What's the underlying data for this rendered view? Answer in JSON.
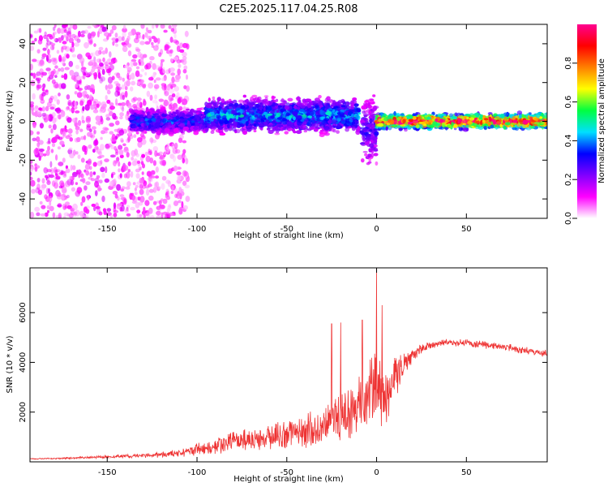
{
  "title": "C2E5.2025.117.04.25.R08",
  "chart_data": [
    {
      "type": "heatmap",
      "xlabel": "Height of straight line (km)",
      "ylabel": "Frequency (Hz)",
      "xlim": [
        -193,
        95
      ],
      "ylim": [
        -50,
        50
      ],
      "xticks": [
        -150,
        -100,
        -50,
        0,
        50
      ],
      "yticks": [
        -40,
        -20,
        0,
        20,
        40
      ],
      "colorbar": {
        "label": "Normalized spectral amplitude",
        "range": [
          0.0,
          1.0
        ],
        "ticks": [
          0.0,
          0.2,
          0.4,
          0.6,
          0.8
        ],
        "tick_labels": [
          "0.0",
          "0.2",
          "0.4",
          "0.6",
          "0.8"
        ],
        "colormap": [
          "#ffffff",
          "#ff00ff",
          "#8000ff",
          "#0000ff",
          "#00e0ff",
          "#00ff40",
          "#ffff00",
          "#ff8000",
          "#ff0000",
          "#ff0090"
        ]
      },
      "bands": [
        {
          "x": [
            -193,
            -140
          ],
          "amplitude": 0.1,
          "spread_hz": 50,
          "description": "scattered low amplitude noise"
        },
        {
          "x": [
            -140,
            -105
          ],
          "amplitude": 0.08,
          "spread_hz": 50,
          "description": "sparse noise"
        },
        {
          "x": [
            -137,
            -95
          ],
          "amplitude": 0.25,
          "center_hz": 0,
          "halfwidth_hz": 5
        },
        {
          "x": [
            -95,
            -10
          ],
          "amplitude": 0.3,
          "center_hz": 3,
          "halfwidth_hz": 7
        },
        {
          "x": [
            -8,
            0
          ],
          "amplitude": 0.2,
          "center_hz": -5,
          "halfwidth_hz": 15
        },
        {
          "x": [
            0,
            95
          ],
          "amplitude": 0.7,
          "center_hz": 0,
          "halfwidth_hz": 3
        }
      ]
    },
    {
      "type": "line",
      "xlabel": "Height of straight line (km)",
      "ylabel": "SNR (10 * v/v)",
      "xlim": [
        -193,
        95
      ],
      "ylim": [
        0,
        7800
      ],
      "xticks": [
        -150,
        -100,
        -50,
        0,
        50
      ],
      "yticks": [
        2000,
        4000,
        6000
      ],
      "color": "#ee3333",
      "series": [
        {
          "x": [
            -193,
            -175,
            -150,
            -125,
            -110,
            -100,
            -90,
            -80,
            -70,
            -60,
            -50,
            -40,
            -30,
            -25,
            -20,
            -15,
            -10,
            -5,
            0,
            5,
            10,
            15,
            20,
            25,
            30,
            35,
            40,
            50,
            60,
            70,
            80,
            95
          ],
          "values": [
            120,
            140,
            200,
            260,
            350,
            500,
            650,
            800,
            900,
            1000,
            1100,
            1250,
            1450,
            1600,
            1800,
            2000,
            2200,
            2600,
            3000,
            2700,
            3300,
            3900,
            4300,
            4550,
            4700,
            4750,
            4800,
            4780,
            4700,
            4650,
            4500,
            4350
          ],
          "noise": [
            20,
            30,
            60,
            100,
            160,
            260,
            350,
            420,
            480,
            520,
            600,
            700,
            800,
            900,
            1000,
            1100,
            1200,
            1400,
            1700,
            1200,
            900,
            500,
            300,
            200,
            150,
            150,
            150,
            150,
            150,
            150,
            150,
            150
          ]
        }
      ],
      "peaks": [
        {
          "x": -25,
          "y": 5550
        },
        {
          "x": -20,
          "y": 5600
        },
        {
          "x": -8,
          "y": 5700
        },
        {
          "x": 0,
          "y": 7800
        },
        {
          "x": 3,
          "y": 6300
        }
      ]
    }
  ]
}
